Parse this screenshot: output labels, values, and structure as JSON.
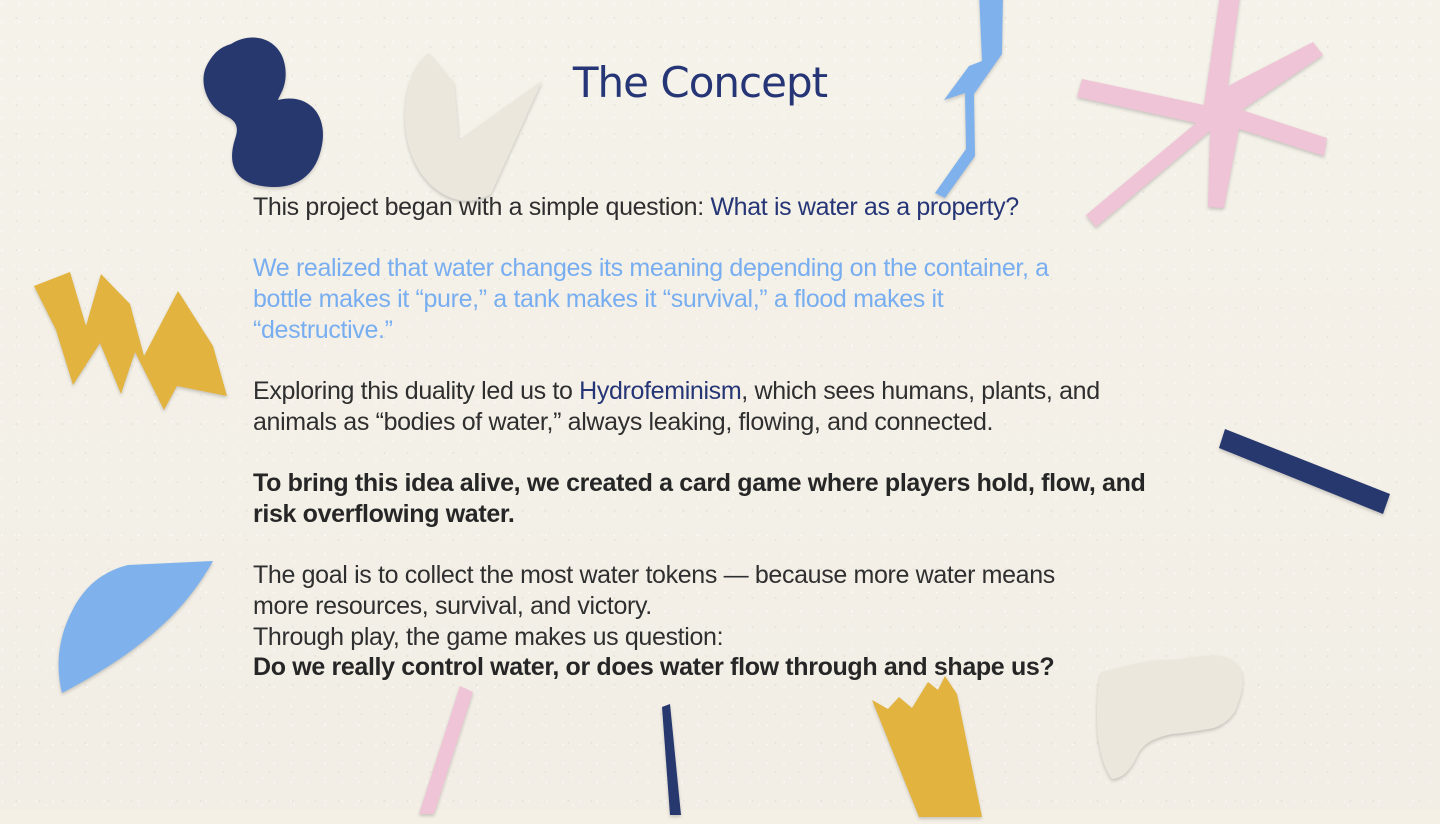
{
  "slide": {
    "title": "The Concept",
    "paragraph_1": {
      "intro": "This project began with a simple question: ",
      "question": "What is water as a property?"
    },
    "paragraph_2": {
      "line_1": "We realized that water changes its meaning depending on the container, a",
      "line_2": "bottle makes it “pure,” a tank makes it “survival,” a flood makes it",
      "line_3": "“destructive.”"
    },
    "paragraph_3": {
      "prefix": "Exploring this duality led us to ",
      "term": "Hydrofeminism",
      "suffix": ", which sees humans, plants, and",
      "line_2": "animals as “bodies of water,” always leaking, flowing, and connected."
    },
    "paragraph_4": {
      "line_1": "To bring this idea alive, we created a card game where players hold, flow, and",
      "line_2": "risk overflowing water."
    },
    "paragraph_5": {
      "line_1": "The goal is to collect the most water tokens — because more water means",
      "line_2": "more resources, survival, and victory.",
      "line_3": "Through play, the game makes us question:",
      "line_4": "Do we really control water, or does water flow through and shape us?"
    },
    "colors": {
      "title": "#253575",
      "accent_blue": "#253575",
      "light_blue": "#78aef0",
      "text": "#2a2a2a",
      "yellow": "#e2b33e",
      "pink": "#efc4d6",
      "cream": "#ece7dd"
    },
    "decorations": [
      "dark-blue-blob-icon",
      "cream-leaf-icon",
      "blue-zigzag-icon",
      "pink-star-icon",
      "yellow-zigzag-icon",
      "dark-blue-stripe-icon",
      "blue-crescent-icon",
      "pink-stripe-icon",
      "dark-blue-strip-icon",
      "yellow-crown-icon",
      "cream-cloud-icon"
    ]
  }
}
